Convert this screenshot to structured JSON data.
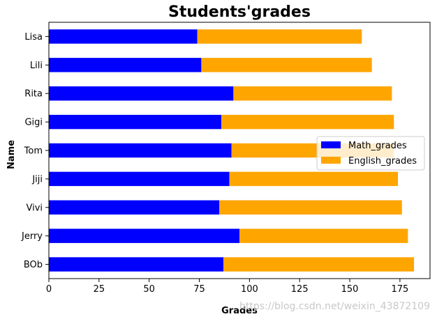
{
  "chart_data": {
    "type": "bar",
    "orientation": "horizontal",
    "stacked": true,
    "title": "Students'grades",
    "xlabel": "Grades",
    "ylabel": "Name",
    "xlim": [
      0,
      190
    ],
    "xticks": [
      0,
      25,
      50,
      75,
      100,
      125,
      150,
      175
    ],
    "categories": [
      "BOb",
      "Jerry",
      "Vivi",
      "Jiji",
      "Tom",
      "Gigi",
      "Rita",
      "Lili",
      "Lisa"
    ],
    "series": [
      {
        "name": "Math_grades",
        "color": "#0000ff",
        "values": [
          87,
          95,
          85,
          90,
          91,
          86,
          92,
          76,
          74
        ]
      },
      {
        "name": "English_grades",
        "color": "#ffa500",
        "values": [
          95,
          84,
          91,
          84,
          81,
          86,
          79,
          85,
          82
        ]
      }
    ],
    "grid": false,
    "legend_position": "center-right"
  },
  "watermark": "https://blog.csdn.net/weixin_43872109"
}
